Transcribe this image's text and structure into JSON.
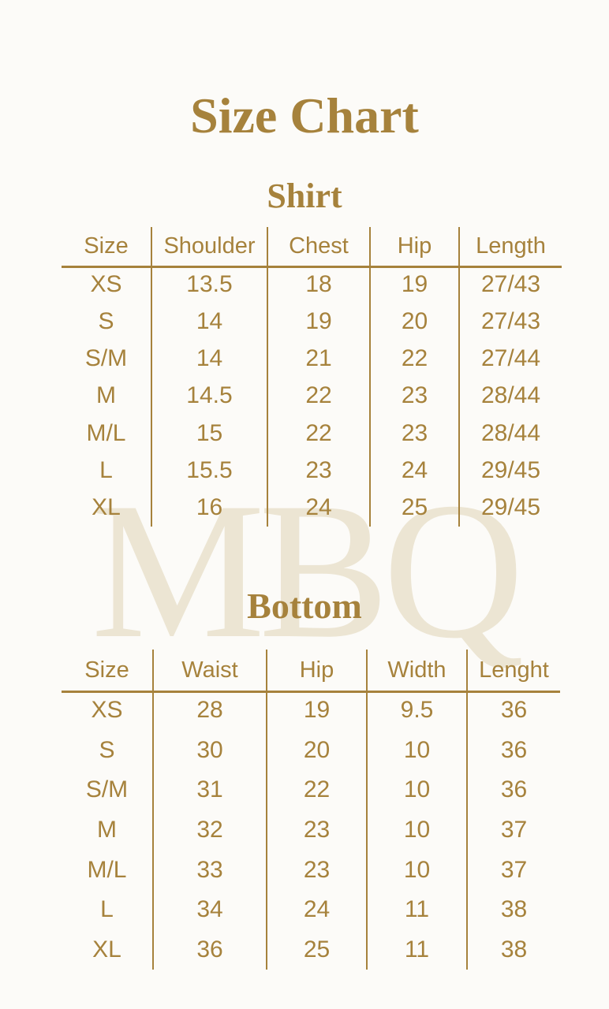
{
  "page": {
    "title": "Size Chart",
    "watermark": "MBQ",
    "colors": {
      "accent": "#a6823c",
      "background": "#fcfbf8",
      "watermark": "#ece5d3"
    }
  },
  "shirt_table": {
    "heading": "Shirt",
    "columns": [
      "Size",
      "Shoulder",
      "Chest",
      "Hip",
      "Length"
    ],
    "rows": [
      [
        "XS",
        "13.5",
        "18",
        "19",
        "27/43"
      ],
      [
        "S",
        "14",
        "19",
        "20",
        "27/43"
      ],
      [
        "S/M",
        "14",
        "21",
        "22",
        "27/44"
      ],
      [
        "M",
        "14.5",
        "22",
        "23",
        "28/44"
      ],
      [
        "M/L",
        "15",
        "22",
        "23",
        "28/44"
      ],
      [
        "L",
        "15.5",
        "23",
        "24",
        "29/45"
      ],
      [
        "XL",
        "16",
        "24",
        "25",
        "29/45"
      ]
    ]
  },
  "bottom_table": {
    "heading": "Bottom",
    "columns": [
      "Size",
      "Waist",
      "Hip",
      "Width",
      "Lenght"
    ],
    "rows": [
      [
        "XS",
        "28",
        "19",
        "9.5",
        "36"
      ],
      [
        "S",
        "30",
        "20",
        "10",
        "36"
      ],
      [
        "S/M",
        "31",
        "22",
        "10",
        "36"
      ],
      [
        "M",
        "32",
        "23",
        "10",
        "37"
      ],
      [
        "M/L",
        "33",
        "23",
        "10",
        "37"
      ],
      [
        "L",
        "34",
        "24",
        "11",
        "38"
      ],
      [
        "XL",
        "36",
        "25",
        "11",
        "38"
      ]
    ]
  }
}
